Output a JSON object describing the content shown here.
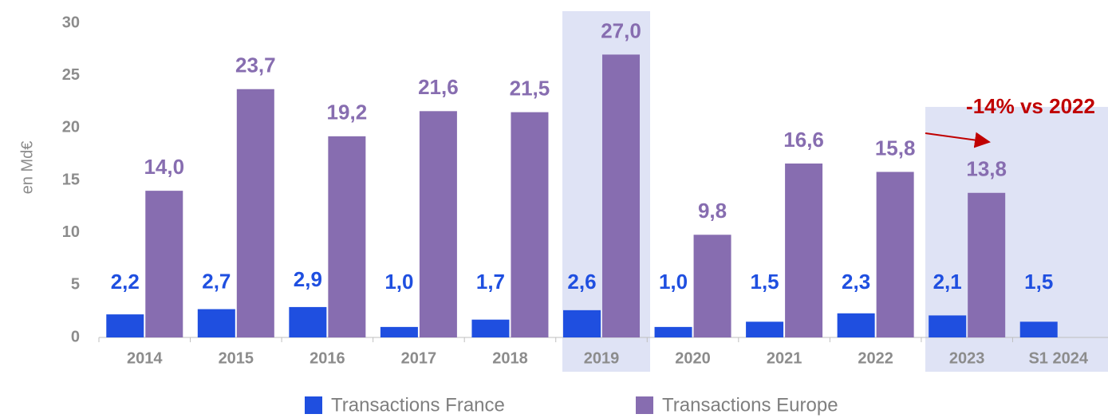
{
  "chart_data": {
    "type": "bar",
    "y_label": "en Md€",
    "annotation": "-14% vs 2022",
    "categories": [
      "2014",
      "2015",
      "2016",
      "2017",
      "2018",
      "2019",
      "2020",
      "2021",
      "2022",
      "2023",
      "S1 2024"
    ],
    "series": [
      {
        "name": "Transactions France",
        "color": "#1f4fe0",
        "values": [
          2.2,
          2.7,
          2.9,
          1.0,
          1.7,
          2.6,
          1.0,
          1.5,
          2.3,
          2.1,
          1.5
        ],
        "value_labels": [
          "2,2",
          "2,7",
          "2,9",
          "1,0",
          "1,7",
          "2,6",
          "1,0",
          "1,5",
          "2,3",
          "2,1",
          "1,5"
        ]
      },
      {
        "name": "Transactions Europe",
        "color": "#876db0",
        "values": [
          14.0,
          23.7,
          19.2,
          21.6,
          21.5,
          27.0,
          9.8,
          16.6,
          15.8,
          13.8,
          null
        ],
        "value_labels": [
          "14,0",
          "23,7",
          "19,2",
          "21,6",
          "21,5",
          "27,0",
          "9,8",
          "16,6",
          "15,8",
          "13,8",
          null
        ]
      }
    ],
    "ylim": [
      0,
      30
    ],
    "yticks": [
      0,
      5,
      10,
      15,
      20,
      25,
      30
    ],
    "grid": false,
    "legend": "bottom"
  }
}
